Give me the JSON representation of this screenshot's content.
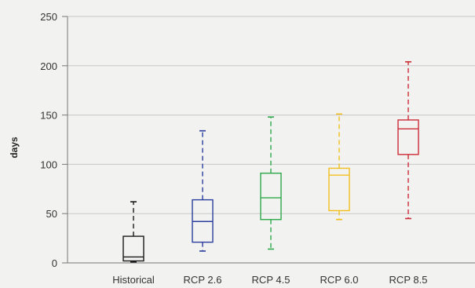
{
  "chart_data": {
    "type": "box",
    "title": "",
    "xlabel": "",
    "ylabel": "days",
    "ylim": [
      0,
      250
    ],
    "yticks": [
      0,
      50,
      100,
      150,
      200,
      250
    ],
    "grid": "horizontal",
    "legend": "none",
    "categories": [
      "Historical",
      "RCP 2.6",
      "RCP 4.5",
      "RCP 6.0",
      "RCP 8.5"
    ],
    "boxes": [
      {
        "category": "Historical",
        "min": 1,
        "q1": 2,
        "median": 6,
        "q3": 27,
        "max": 62,
        "color": "#1a1a1a"
      },
      {
        "category": "RCP 2.6",
        "min": 12,
        "q1": 21,
        "median": 42,
        "q3": 64,
        "max": 134,
        "color": "#2b3f9e"
      },
      {
        "category": "RCP 4.5",
        "min": 14,
        "q1": 44,
        "median": 66,
        "q3": 91,
        "max": 148,
        "color": "#2ea84a"
      },
      {
        "category": "RCP 6.0",
        "min": 44,
        "q1": 53,
        "median": 89,
        "q3": 96,
        "max": 151,
        "color": "#f2c01e"
      },
      {
        "category": "RCP 8.5",
        "min": 45,
        "q1": 110,
        "median": 136,
        "q3": 145,
        "max": 204,
        "color": "#cc2b36"
      }
    ]
  }
}
